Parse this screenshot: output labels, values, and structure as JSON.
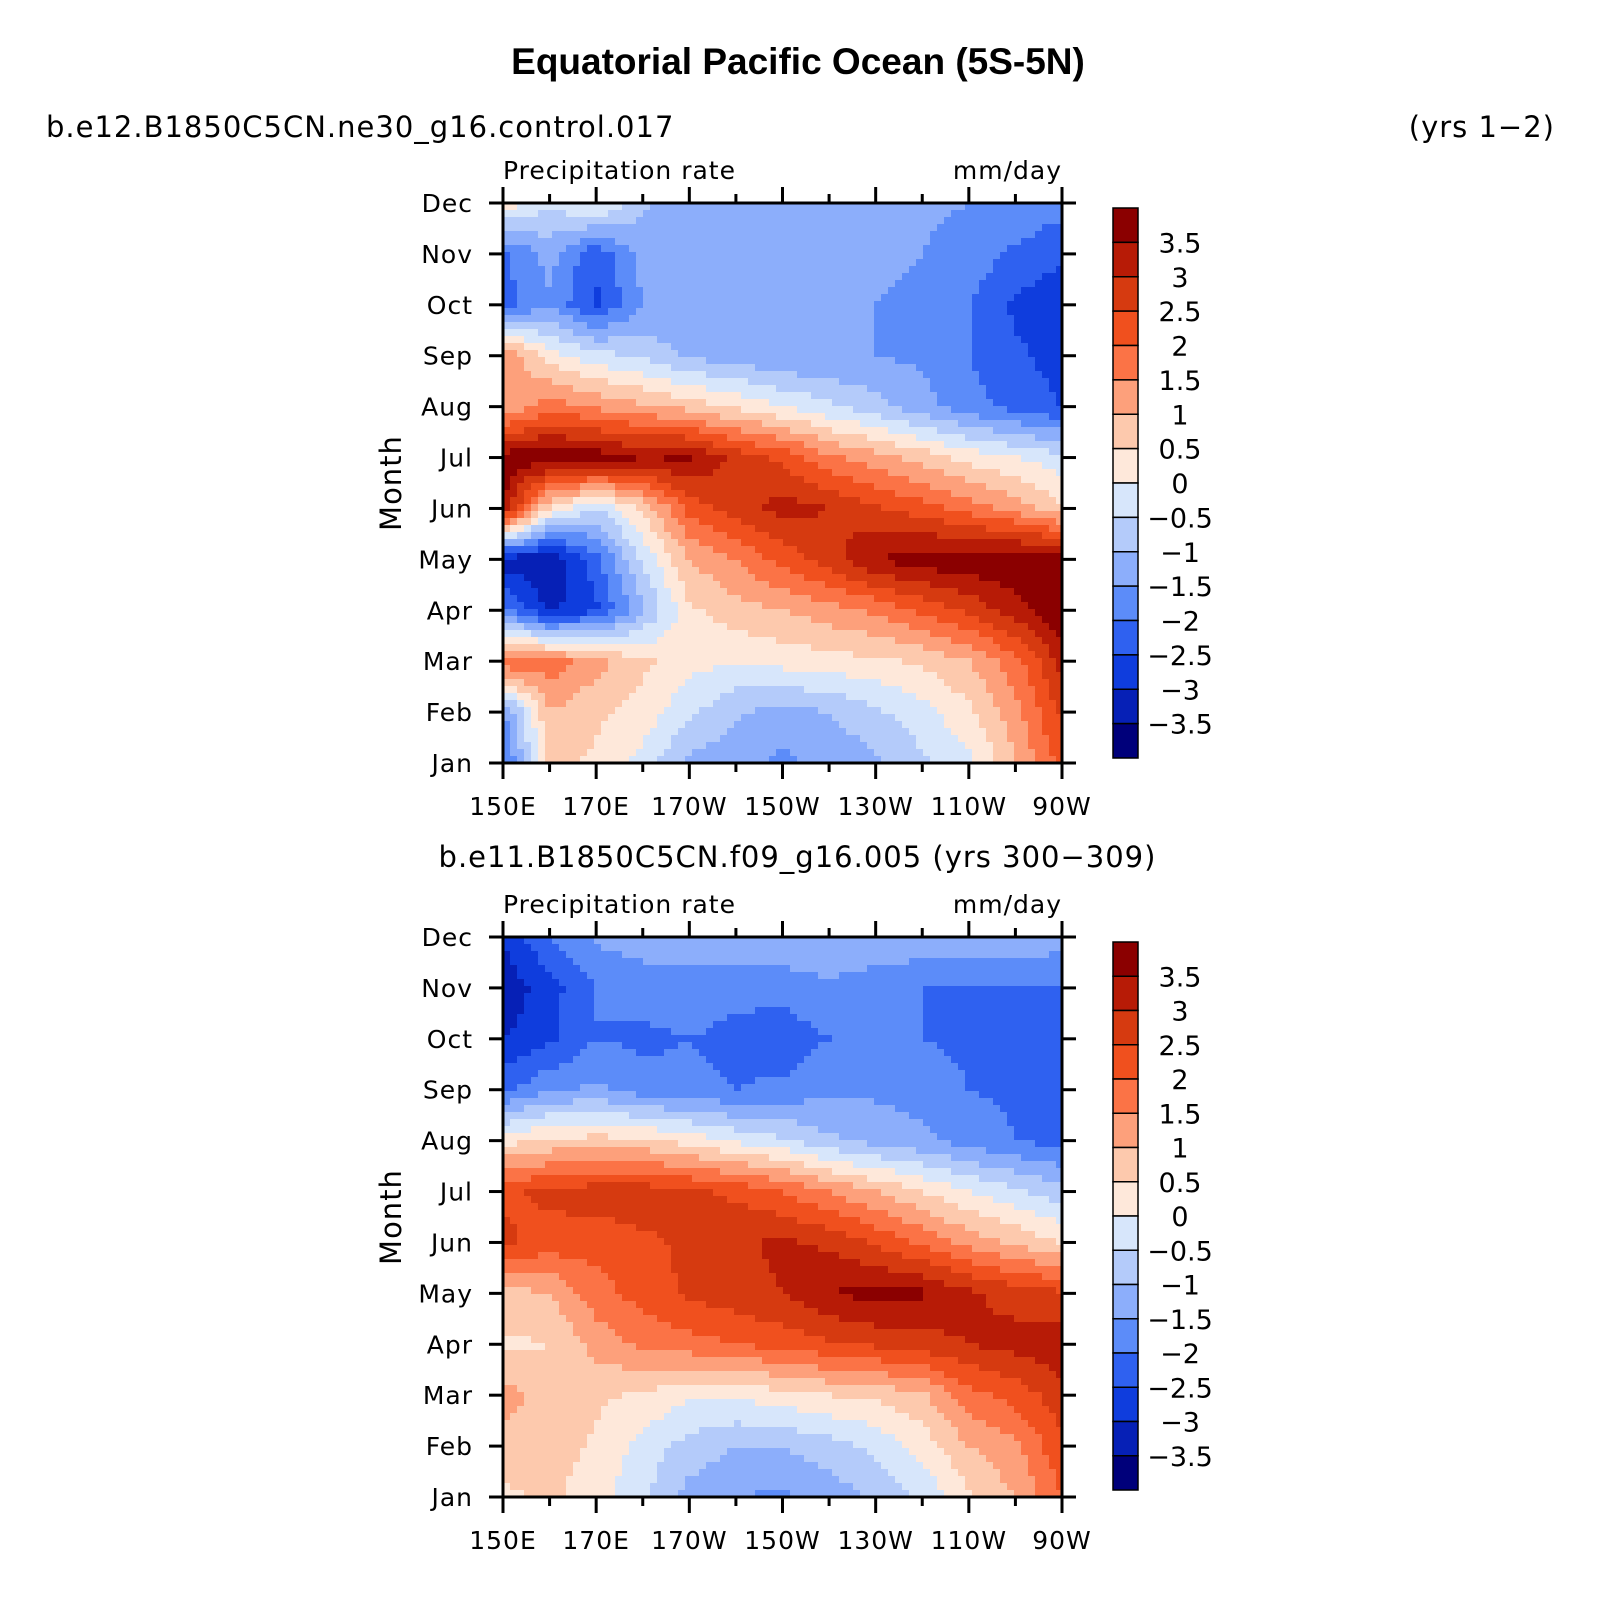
{
  "figure": {
    "title": "Equatorial Pacific Ocean (5S-5N)",
    "left_subtitle": "b.e12.B1850C5CN.ne30_g16.control.017",
    "right_subtitle": "(yrs 1−2)"
  },
  "colorbar": {
    "labels": [
      "3.5",
      "3",
      "2.5",
      "2",
      "1.5",
      "1",
      "0.5",
      "0",
      "−0.5",
      "−1",
      "−1.5",
      "−2",
      "−2.5",
      "−3",
      "−3.5"
    ],
    "colors": [
      "#8b0000",
      "#b71b06",
      "#d63a10",
      "#f0501e",
      "#fb7346",
      "#fda07b",
      "#fdc9ad",
      "#fee8da",
      "#d7e6fb",
      "#b4cbfa",
      "#8caefb",
      "#5c8cf9",
      "#2f61f0",
      "#0f3ddd",
      "#0620b6",
      "#00007a"
    ]
  },
  "chart_data": [
    {
      "type": "heatmap",
      "panel_title": "",
      "left_label": "Precipitation rate",
      "right_label": "mm/day",
      "ylabel": "Month",
      "xticks": [
        "150E",
        "170E",
        "170W",
        "150W",
        "130W",
        "110W",
        "90W"
      ],
      "yticks": [
        "Jan",
        "Feb",
        "Mar",
        "Apr",
        "May",
        "Jun",
        "Jul",
        "Aug",
        "Sep",
        "Oct",
        "Nov",
        "Dec"
      ],
      "x": [
        "150E",
        "160E",
        "170E",
        "180",
        "170W",
        "160W",
        "150W",
        "140W",
        "130W",
        "120W",
        "110W",
        "100W",
        "90W"
      ],
      "y": [
        "Jan",
        "Feb",
        "Mar",
        "Apr",
        "May",
        "Jun",
        "Jul",
        "Aug",
        "Sep",
        "Oct",
        "Nov",
        "Dec"
      ],
      "values": [
        [
          -2.2,
          0.6,
          0.4,
          -0.2,
          -1.1,
          -1.4,
          -1.6,
          -1.4,
          -1.1,
          -0.6,
          -0.2,
          1.0,
          2.2
        ],
        [
          -1.6,
          1.0,
          0.6,
          0.3,
          -0.4,
          -0.9,
          -1.2,
          -1.0,
          -0.6,
          -0.2,
          0.4,
          1.3,
          2.6
        ],
        [
          2.0,
          1.8,
          1.2,
          0.6,
          0.2,
          0.0,
          0.2,
          0.3,
          0.4,
          0.6,
          1.0,
          1.8,
          3.2
        ],
        [
          -1.8,
          -3.1,
          -2.6,
          -1.1,
          0.4,
          0.8,
          1.0,
          1.3,
          1.6,
          2.1,
          2.6,
          3.3,
          3.9
        ],
        [
          -3.3,
          -3.5,
          -2.2,
          -0.4,
          1.0,
          1.5,
          2.2,
          2.8,
          3.5,
          3.8,
          3.9,
          3.9,
          3.9
        ],
        [
          3.5,
          0.4,
          -0.6,
          0.6,
          2.2,
          2.8,
          3.2,
          3.0,
          2.6,
          2.2,
          1.8,
          1.3,
          0.6
        ],
        [
          3.8,
          3.9,
          3.8,
          3.5,
          3.6,
          2.8,
          2.4,
          1.6,
          1.2,
          0.8,
          0.3,
          0.0,
          -0.3
        ],
        [
          1.0,
          1.8,
          1.4,
          1.1,
          0.8,
          0.4,
          0.0,
          -0.4,
          -0.8,
          -1.3,
          -1.8,
          -2.2,
          -2.5
        ],
        [
          1.6,
          0.2,
          -0.3,
          -0.6,
          -1.1,
          -1.3,
          -1.5,
          -1.5,
          -1.5,
          -1.6,
          -2.0,
          -2.4,
          -2.7
        ],
        [
          -2.2,
          -1.6,
          -2.6,
          -1.5,
          -1.4,
          -1.4,
          -1.4,
          -1.4,
          -1.5,
          -1.6,
          -2.0,
          -2.6,
          -2.9
        ],
        [
          -2.1,
          -1.3,
          -2.4,
          -1.3,
          -1.5,
          -1.5,
          -1.5,
          -1.4,
          -1.4,
          -1.5,
          -1.7,
          -2.1,
          -2.4
        ],
        [
          0.3,
          -0.4,
          0.2,
          -0.9,
          -1.3,
          -1.4,
          -1.4,
          -1.3,
          -1.4,
          -1.4,
          -1.5,
          -1.6,
          -1.8
        ]
      ]
    },
    {
      "type": "heatmap",
      "panel_title": "b.e11.B1850C5CN.f09_g16.005 (yrs 300−309)",
      "left_label": "Precipitation rate",
      "right_label": "mm/day",
      "ylabel": "Month",
      "xticks": [
        "150E",
        "170E",
        "170W",
        "150W",
        "130W",
        "110W",
        "90W"
      ],
      "yticks": [
        "Jan",
        "Feb",
        "Mar",
        "Apr",
        "May",
        "Jun",
        "Jul",
        "Aug",
        "Sep",
        "Oct",
        "Nov",
        "Dec"
      ],
      "x": [
        "150E",
        "160E",
        "170E",
        "180",
        "170W",
        "160W",
        "150W",
        "140W",
        "130W",
        "120W",
        "110W",
        "100W",
        "90W"
      ],
      "y": [
        "Jan",
        "Feb",
        "Mar",
        "Apr",
        "May",
        "Jun",
        "Jul",
        "Aug",
        "Sep",
        "Oct",
        "Nov",
        "Dec"
      ],
      "values": [
        [
          0.4,
          0.6,
          0.2,
          -0.4,
          -1.2,
          -1.5,
          -1.6,
          -1.3,
          -0.9,
          -0.4,
          0.4,
          1.0,
          2.0
        ],
        [
          0.8,
          0.8,
          0.4,
          -0.2,
          -0.7,
          -1.0,
          -1.0,
          -0.7,
          -0.4,
          0.2,
          1.0,
          1.4,
          2.4
        ],
        [
          1.2,
          0.8,
          0.6,
          0.4,
          0.1,
          0.1,
          0.3,
          0.5,
          0.6,
          0.9,
          1.8,
          2.2,
          2.8
        ],
        [
          0.4,
          0.5,
          1.2,
          1.6,
          1.8,
          2.0,
          2.2,
          2.4,
          2.6,
          2.8,
          3.0,
          3.2,
          3.4
        ],
        [
          0.8,
          1.0,
          1.8,
          2.2,
          2.6,
          2.8,
          3.0,
          3.5,
          3.7,
          3.6,
          3.1,
          2.8,
          2.6
        ],
        [
          2.6,
          2.3,
          2.2,
          2.4,
          2.6,
          2.9,
          3.1,
          2.9,
          2.4,
          1.9,
          1.3,
          0.9,
          0.5
        ],
        [
          2.4,
          2.6,
          2.8,
          2.8,
          2.6,
          2.4,
          2.0,
          1.5,
          1.0,
          0.5,
          0.0,
          -0.4,
          -0.8
        ],
        [
          0.3,
          0.6,
          0.7,
          0.6,
          0.3,
          -0.1,
          -0.4,
          -0.9,
          -1.2,
          -1.4,
          -1.7,
          -2.0,
          -2.2
        ],
        [
          -2.1,
          -1.6,
          -1.4,
          -1.8,
          -1.9,
          -2.0,
          -1.9,
          -1.6,
          -1.6,
          -1.7,
          -2.0,
          -2.1,
          -2.2
        ],
        [
          -3.0,
          -2.6,
          -2.0,
          -2.1,
          -2.0,
          -2.1,
          -2.3,
          -2.0,
          -1.5,
          -2.0,
          -2.1,
          -2.2,
          -2.4
        ],
        [
          -3.4,
          -2.7,
          -2.0,
          -1.8,
          -1.8,
          -1.9,
          -1.8,
          -1.6,
          -1.8,
          -2.0,
          -2.0,
          -2.0,
          -2.1
        ],
        [
          -2.9,
          -2.0,
          -1.4,
          -1.2,
          -1.1,
          -1.1,
          -1.1,
          -1.0,
          -1.1,
          -1.1,
          -1.2,
          -1.2,
          -1.2
        ]
      ]
    }
  ]
}
